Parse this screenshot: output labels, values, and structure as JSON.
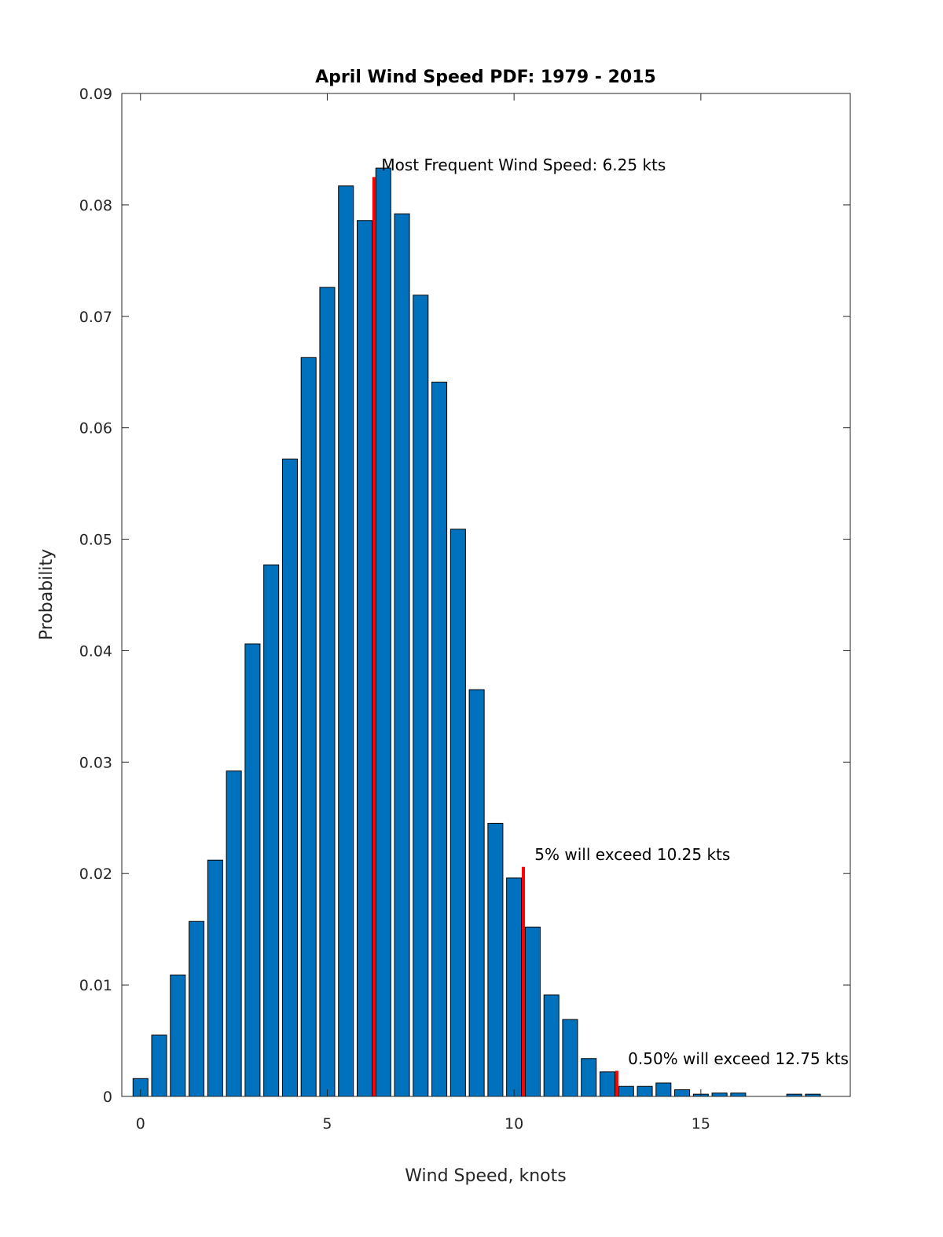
{
  "chart_data": {
    "type": "bar",
    "title": "April Wind Speed PDF: 1979 - 2015",
    "xlabel": "Wind Speed, knots",
    "ylabel": "Probability",
    "xlim": [
      -0.5,
      19
    ],
    "ylim": [
      0,
      0.09
    ],
    "xticks": [
      0,
      5,
      10,
      15
    ],
    "xtick_labels": [
      "0",
      "5",
      "10",
      "15"
    ],
    "yticks": [
      0,
      0.01,
      0.02,
      0.03,
      0.04,
      0.05,
      0.06,
      0.07,
      0.08,
      0.09
    ],
    "ytick_labels": [
      "0",
      "0.01",
      "0.02",
      "0.03",
      "0.04",
      "0.05",
      "0.06",
      "0.07",
      "0.08",
      "0.09"
    ],
    "bar_width": 0.4,
    "bar_color": "#0072BD",
    "marker_color": "#FF0000",
    "grid": false,
    "x": [
      0,
      0.5,
      1,
      1.5,
      2,
      2.5,
      3,
      3.5,
      4,
      4.5,
      5,
      5.5,
      6,
      6.5,
      7,
      7.5,
      8,
      8.5,
      9,
      9.5,
      10,
      10.5,
      11,
      11.5,
      12,
      12.5,
      13,
      13.5,
      14,
      14.5,
      15,
      15.5,
      16,
      16.5,
      17,
      17.5,
      18
    ],
    "values": [
      0.0016,
      0.0055,
      0.0109,
      0.0157,
      0.0212,
      0.0292,
      0.0406,
      0.0477,
      0.0572,
      0.0663,
      0.0726,
      0.0817,
      0.0786,
      0.0833,
      0.0792,
      0.0719,
      0.0641,
      0.0509,
      0.0365,
      0.0245,
      0.0196,
      0.0152,
      0.0091,
      0.0069,
      0.0034,
      0.0022,
      0.0009,
      0.0009,
      0.0012,
      0.0006,
      0.0002,
      0.0003,
      0.0003,
      0.0,
      0.0,
      0.0002,
      0.0002
    ],
    "markers": [
      {
        "x": 6.25,
        "height": 0.0825,
        "label": "Most Frequent Wind Speed: 6.25 kts",
        "label_x": 6.45,
        "label_y": 0.0831
      },
      {
        "x": 10.25,
        "height": 0.0206,
        "label": "5% will exceed 10.25 kts",
        "label_x": 10.55,
        "label_y": 0.0212
      },
      {
        "x": 12.75,
        "height": 0.0023,
        "label": "0.50% will exceed 12.75 kts",
        "label_x": 13.05,
        "label_y": 0.0029
      }
    ]
  }
}
